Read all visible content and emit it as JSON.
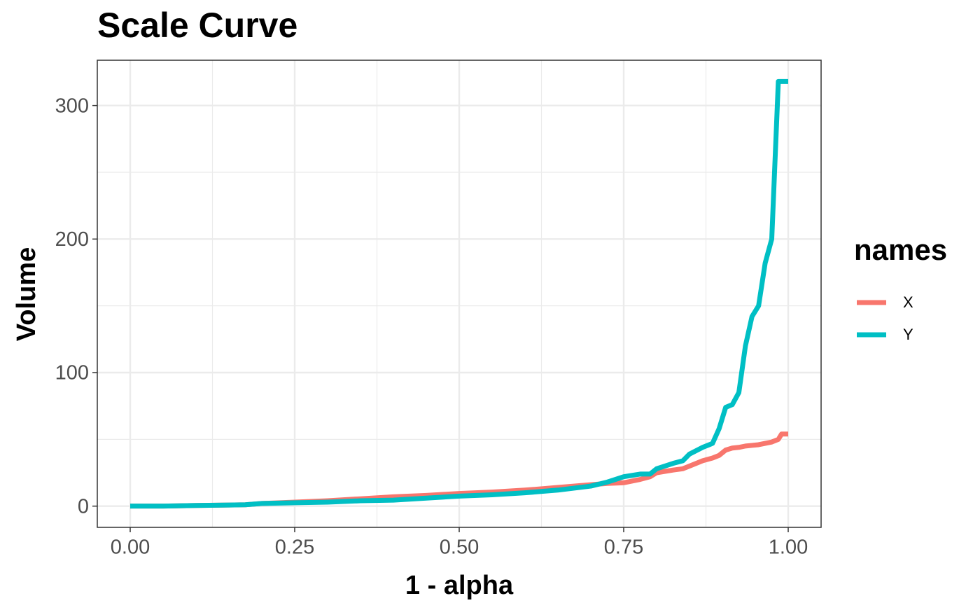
{
  "chart_data": {
    "type": "line",
    "title": "Scale Curve",
    "x_label": "1 - alpha",
    "y_label": "Volume",
    "legend_title": "names",
    "legend_position": "right",
    "x": [
      0,
      0.05,
      0.1,
      0.15,
      0.175,
      0.2,
      0.25,
      0.3,
      0.35,
      0.4,
      0.45,
      0.5,
      0.55,
      0.6,
      0.65,
      0.7,
      0.725,
      0.75,
      0.775,
      0.79,
      0.8,
      0.825,
      0.84,
      0.85,
      0.87,
      0.885,
      0.895,
      0.905,
      0.915,
      0.925,
      0.935,
      0.945,
      0.955,
      0.965,
      0.975,
      0.985,
      0.99,
      1.0
    ],
    "series": [
      {
        "name": "X",
        "color": "#F8766D",
        "values": [
          0,
          0,
          0.5,
          0.8,
          1,
          2,
          3,
          4,
          5.5,
          7,
          8,
          9.5,
          10.5,
          12,
          14,
          16,
          17,
          17.5,
          20,
          22,
          25,
          27,
          28,
          30,
          34,
          36,
          38,
          42,
          43.5,
          44,
          45,
          45.5,
          46,
          47,
          48,
          50,
          54,
          54
        ]
      },
      {
        "name": "Y",
        "color": "#00BFC4",
        "values": [
          0,
          0,
          0.5,
          0.8,
          1,
          2,
          2.5,
          3,
          4,
          4.5,
          6,
          7.5,
          8.5,
          10,
          12,
          15,
          18,
          22,
          24,
          24,
          28,
          32,
          34,
          39,
          44,
          47,
          58,
          74,
          76,
          85,
          120,
          142,
          150,
          182,
          200,
          318,
          318,
          318
        ]
      }
    ],
    "xlim": [
      -0.05,
      1.05
    ],
    "ylim": [
      -15.9,
      333.9
    ],
    "xticks": [
      {
        "value": 0,
        "label": "0.00"
      },
      {
        "value": 0.25,
        "label": "0.25"
      },
      {
        "value": 0.5,
        "label": "0.50"
      },
      {
        "value": 0.75,
        "label": "0.75"
      },
      {
        "value": 1,
        "label": "1.00"
      }
    ],
    "yticks": [
      0,
      100,
      200,
      300
    ],
    "x_minor_grid": [
      0.125,
      0.375,
      0.625,
      0.875
    ],
    "y_minor_grid": [
      50,
      150,
      250
    ],
    "grid": true
  }
}
